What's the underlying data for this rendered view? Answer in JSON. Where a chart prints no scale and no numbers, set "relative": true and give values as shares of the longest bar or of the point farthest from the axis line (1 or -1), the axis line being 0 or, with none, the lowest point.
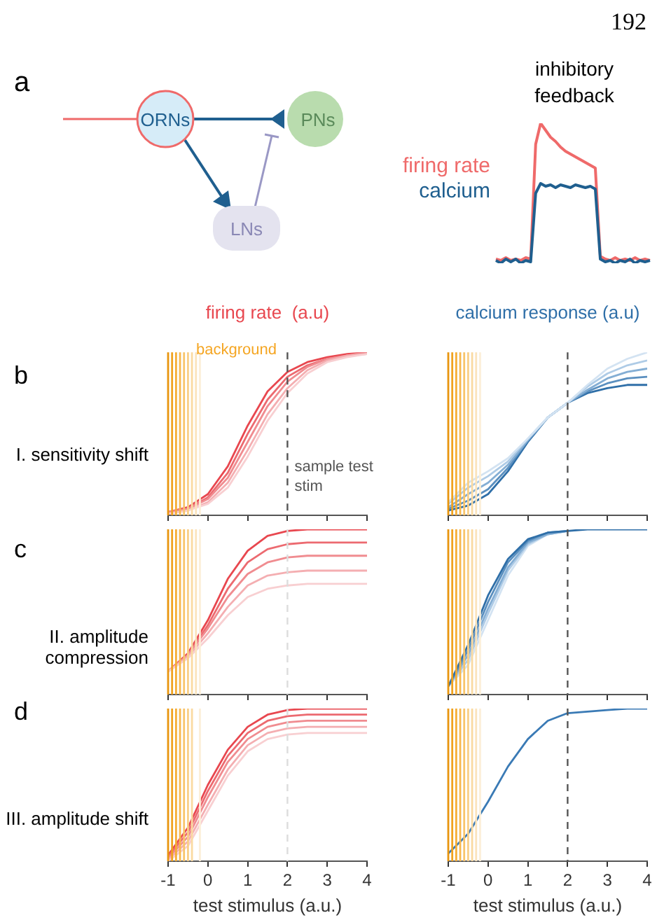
{
  "chart_data": [
    {
      "type": "other",
      "annotations": [
        "a",
        "ORNs",
        "PNs",
        "LNs",
        "192"
      ]
    },
    {
      "type": "line",
      "title": "inhibitory feedback",
      "relative": true,
      "tick_labels": false,
      "categories": [
        null,
        null,
        null,
        null,
        null,
        null,
        null,
        null,
        null,
        null,
        null,
        null,
        null,
        null,
        null,
        null,
        null,
        null,
        null,
        null,
        null,
        null,
        null,
        null,
        null,
        null,
        null,
        null,
        null,
        null,
        null,
        null
      ],
      "series": [
        {
          "name": "firing rate",
          "color": "#ef6a6a",
          "values": [
            0.03,
            0.02,
            0.04,
            0.02,
            0.03,
            0.02,
            0.04,
            0.03,
            0.85,
            1.0,
            0.95,
            0.9,
            0.87,
            0.83,
            0.8,
            0.78,
            0.76,
            0.74,
            0.72,
            0.7,
            0.68,
            0.05,
            0.03,
            0.02,
            0.04,
            0.02,
            0.03,
            0.02,
            0.04,
            0.02,
            0.03,
            0.02
          ]
        },
        {
          "name": "calcium",
          "color": "#1f5f8f",
          "values": [
            0.02,
            0.0,
            0.03,
            0.01,
            0.03,
            0.0,
            0.02,
            0.01,
            0.5,
            0.57,
            0.55,
            0.56,
            0.54,
            0.56,
            0.55,
            0.54,
            0.56,
            0.55,
            0.54,
            0.55,
            0.53,
            0.03,
            0.01,
            0.02,
            0.0,
            0.02,
            0.01,
            0.03,
            0.0,
            0.02,
            0.01,
            0.02
          ]
        }
      ]
    },
    {
      "type": "line",
      "title": "firing rate  (a.u)",
      "relative": true,
      "tick_labels": false,
      "xlim": [
        -1,
        4
      ],
      "xticks": [
        -1,
        0,
        1,
        2,
        3,
        4
      ],
      "x": [
        -1,
        -0.5,
        0,
        0.5,
        1,
        1.5,
        2,
        2.5,
        3,
        3.5,
        4
      ],
      "annotations": [
        "b",
        "I. sensitivity shift",
        "background"
      ],
      "ref_lines": [
        {
          "axis": "x",
          "value": -1,
          "color": "#e8950e"
        },
        {
          "axis": "x",
          "value": -0.9,
          "color": "#f0a21f"
        },
        {
          "axis": "x",
          "value": -0.8,
          "color": "#f5ad35"
        },
        {
          "axis": "x",
          "value": -0.7,
          "color": "#f7b84f"
        },
        {
          "axis": "x",
          "value": -0.6,
          "color": "#f8c46a"
        },
        {
          "axis": "x",
          "value": -0.5,
          "color": "#f9cf86"
        },
        {
          "axis": "x",
          "value": -0.4,
          "color": "#fadaa1"
        },
        {
          "axis": "x",
          "value": -0.3,
          "color": "#fbe4bc"
        },
        {
          "axis": "x",
          "value": -0.2,
          "color": "#fcefd8"
        },
        {
          "axis": "x",
          "value": 2,
          "label": "sample test stim",
          "color": "#555555",
          "line_style": "dashed"
        }
      ],
      "series": [
        {
          "color": "#e8474f",
          "values": [
            0.02,
            0.05,
            0.13,
            0.3,
            0.55,
            0.76,
            0.88,
            0.94,
            0.97,
            0.99,
            1.0
          ]
        },
        {
          "color": "#ec6a70",
          "values": [
            0.02,
            0.04,
            0.11,
            0.26,
            0.5,
            0.71,
            0.85,
            0.92,
            0.96,
            0.98,
            1.0
          ]
        },
        {
          "color": "#f08c90",
          "values": [
            0.02,
            0.04,
            0.1,
            0.23,
            0.45,
            0.67,
            0.82,
            0.91,
            0.96,
            0.98,
            1.0
          ]
        },
        {
          "color": "#f4aeb1",
          "values": [
            0.01,
            0.03,
            0.08,
            0.2,
            0.4,
            0.62,
            0.78,
            0.89,
            0.95,
            0.98,
            0.99
          ]
        },
        {
          "color": "#f8cfd1",
          "values": [
            0.01,
            0.03,
            0.07,
            0.17,
            0.36,
            0.58,
            0.75,
            0.87,
            0.94,
            0.97,
            0.99
          ]
        }
      ]
    },
    {
      "type": "line",
      "title": "calcium response (a.u)",
      "relative": true,
      "tick_labels": false,
      "xlim": [
        -1,
        4
      ],
      "xticks": [
        -1,
        0,
        1,
        2,
        3,
        4
      ],
      "x": [
        -1,
        -0.5,
        0,
        0.5,
        1,
        1.5,
        2,
        2.5,
        3,
        3.5,
        4
      ],
      "ref_lines": [
        {
          "axis": "x",
          "value": -1,
          "color": "#e8950e"
        },
        {
          "axis": "x",
          "value": -0.9,
          "color": "#f0a21f"
        },
        {
          "axis": "x",
          "value": -0.8,
          "color": "#f5ad35"
        },
        {
          "axis": "x",
          "value": -0.7,
          "color": "#f7b84f"
        },
        {
          "axis": "x",
          "value": -0.6,
          "color": "#f8c46a"
        },
        {
          "axis": "x",
          "value": -0.5,
          "color": "#f9cf86"
        },
        {
          "axis": "x",
          "value": -0.4,
          "color": "#fadaa1"
        },
        {
          "axis": "x",
          "value": -0.3,
          "color": "#fbe4bc"
        },
        {
          "axis": "x",
          "value": -0.2,
          "color": "#fcefd8"
        },
        {
          "axis": "x",
          "value": 2,
          "color": "#555555",
          "line_style": "dashed"
        }
      ],
      "series": [
        {
          "color": "#2f6fa8",
          "values": [
            0.03,
            0.06,
            0.13,
            0.27,
            0.45,
            0.6,
            0.69,
            0.75,
            0.78,
            0.8,
            0.8
          ]
        },
        {
          "color": "#5a8fbf",
          "values": [
            0.04,
            0.09,
            0.16,
            0.29,
            0.46,
            0.6,
            0.69,
            0.76,
            0.81,
            0.84,
            0.85
          ]
        },
        {
          "color": "#84aed4",
          "values": [
            0.05,
            0.13,
            0.2,
            0.31,
            0.46,
            0.6,
            0.69,
            0.77,
            0.84,
            0.88,
            0.9
          ]
        },
        {
          "color": "#aecbe6",
          "values": [
            0.07,
            0.17,
            0.24,
            0.33,
            0.47,
            0.6,
            0.69,
            0.79,
            0.87,
            0.92,
            0.95
          ]
        },
        {
          "color": "#d3e3f2",
          "values": [
            0.08,
            0.2,
            0.27,
            0.35,
            0.47,
            0.6,
            0.69,
            0.8,
            0.9,
            0.96,
            1.0
          ]
        }
      ]
    },
    {
      "type": "line",
      "relative": true,
      "tick_labels": false,
      "xlim": [
        -1,
        4
      ],
      "xticks": [
        -1,
        0,
        1,
        2,
        3,
        4
      ],
      "x": [
        -1,
        -0.5,
        0,
        0.5,
        1,
        1.5,
        2,
        2.5,
        3,
        3.5,
        4
      ],
      "annotations": [
        "c",
        "II. amplitude compression"
      ],
      "ref_lines": [
        {
          "axis": "x",
          "value": -1,
          "color": "#e8950e"
        },
        {
          "axis": "x",
          "value": -0.9,
          "color": "#f0a21f"
        },
        {
          "axis": "x",
          "value": -0.8,
          "color": "#f5ad35"
        },
        {
          "axis": "x",
          "value": -0.7,
          "color": "#f7b84f"
        },
        {
          "axis": "x",
          "value": -0.6,
          "color": "#f8c46a"
        },
        {
          "axis": "x",
          "value": -0.5,
          "color": "#f9cf86"
        },
        {
          "axis": "x",
          "value": -0.4,
          "color": "#fadaa1"
        },
        {
          "axis": "x",
          "value": -0.3,
          "color": "#fbe4bc"
        },
        {
          "axis": "x",
          "value": -0.2,
          "color": "#fcefd8"
        },
        {
          "axis": "x",
          "value": 2,
          "color": "#dddddd",
          "line_style": "dashed"
        }
      ],
      "series": [
        {
          "color": "#e8474f",
          "values": [
            0.14,
            0.25,
            0.45,
            0.7,
            0.87,
            0.96,
            0.99,
            1.0,
            1.0,
            1.0,
            1.0
          ]
        },
        {
          "color": "#ec6a70",
          "values": [
            0.14,
            0.24,
            0.42,
            0.64,
            0.8,
            0.88,
            0.91,
            0.92,
            0.92,
            0.92,
            0.92
          ]
        },
        {
          "color": "#f08c90",
          "values": [
            0.14,
            0.24,
            0.4,
            0.59,
            0.73,
            0.8,
            0.83,
            0.84,
            0.84,
            0.84,
            0.84
          ]
        },
        {
          "color": "#f4aeb1",
          "values": [
            0.14,
            0.23,
            0.37,
            0.53,
            0.66,
            0.72,
            0.74,
            0.75,
            0.75,
            0.75,
            0.75
          ]
        },
        {
          "color": "#f8cfd1",
          "values": [
            0.14,
            0.22,
            0.34,
            0.48,
            0.59,
            0.64,
            0.66,
            0.67,
            0.67,
            0.67,
            0.67
          ]
        }
      ]
    },
    {
      "type": "line",
      "relative": true,
      "tick_labels": false,
      "xlim": [
        -1,
        4
      ],
      "xticks": [
        -1,
        0,
        1,
        2,
        3,
        4
      ],
      "x": [
        -1,
        -0.5,
        0,
        0.5,
        1,
        1.5,
        2,
        2.5,
        3,
        3.5,
        4
      ],
      "ref_lines": [
        {
          "axis": "x",
          "value": -1,
          "color": "#e8950e"
        },
        {
          "axis": "x",
          "value": -0.9,
          "color": "#f0a21f"
        },
        {
          "axis": "x",
          "value": -0.8,
          "color": "#f5ad35"
        },
        {
          "axis": "x",
          "value": -0.7,
          "color": "#f7b84f"
        },
        {
          "axis": "x",
          "value": -0.6,
          "color": "#f8c46a"
        },
        {
          "axis": "x",
          "value": -0.5,
          "color": "#f9cf86"
        },
        {
          "axis": "x",
          "value": -0.4,
          "color": "#fadaa1"
        },
        {
          "axis": "x",
          "value": -0.3,
          "color": "#fbe4bc"
        },
        {
          "axis": "x",
          "value": -0.2,
          "color": "#fcefd8"
        },
        {
          "axis": "x",
          "value": 2,
          "color": "#555555",
          "line_style": "dashed"
        }
      ],
      "series": [
        {
          "color": "#d3e3f2",
          "values": [
            0.05,
            0.18,
            0.45,
            0.72,
            0.9,
            0.97,
            0.99,
            null,
            null,
            null,
            null
          ]
        },
        {
          "color": "#aecbe6",
          "values": [
            0.05,
            0.21,
            0.49,
            0.75,
            0.91,
            0.97,
            0.99,
            null,
            null,
            null,
            null
          ]
        },
        {
          "color": "#84aed4",
          "values": [
            0.05,
            0.24,
            0.52,
            0.77,
            0.92,
            0.97,
            0.99,
            null,
            null,
            null,
            null
          ]
        },
        {
          "color": "#5a8fbf",
          "values": [
            0.05,
            0.27,
            0.56,
            0.8,
            0.93,
            0.98,
            0.99,
            null,
            null,
            null,
            null
          ]
        },
        {
          "color": "#2f6fa8",
          "values": [
            0.05,
            0.3,
            0.6,
            0.82,
            0.94,
            0.98,
            0.99,
            1.0,
            1.0,
            1.0,
            1.0
          ]
        }
      ]
    },
    {
      "type": "line",
      "relative": true,
      "tick_labels": "x",
      "xlabel": "test stimulus (a.u.)",
      "xlim": [
        -1,
        4
      ],
      "xticks": [
        -1,
        0,
        1,
        2,
        3,
        4
      ],
      "x": [
        -1,
        -0.5,
        0,
        0.5,
        1,
        1.5,
        2,
        2.5,
        3,
        3.5,
        4
      ],
      "annotations": [
        "d",
        "III. amplitude shift"
      ],
      "ref_lines": [
        {
          "axis": "x",
          "value": -1,
          "color": "#e8950e"
        },
        {
          "axis": "x",
          "value": -0.9,
          "color": "#f0a21f"
        },
        {
          "axis": "x",
          "value": -0.8,
          "color": "#f5ad35"
        },
        {
          "axis": "x",
          "value": -0.7,
          "color": "#f7b84f"
        },
        {
          "axis": "x",
          "value": -0.6,
          "color": "#f8c46a"
        },
        {
          "axis": "x",
          "value": -0.5,
          "color": "#f9cf86"
        },
        {
          "axis": "x",
          "value": -0.4,
          "color": "#fadaa1"
        },
        {
          "axis": "x",
          "value": -0.2,
          "color": "#fcefd8"
        },
        {
          "axis": "x",
          "value": 2,
          "color": "#dddddd",
          "line_style": "dashed"
        }
      ],
      "series": [
        {
          "color": "#e8474f",
          "values": [
            0.04,
            0.22,
            0.5,
            0.73,
            0.88,
            0.96,
            0.99,
            1.0,
            1.0,
            1.0,
            1.0
          ]
        },
        {
          "color": "#ec6a70",
          "values": [
            0.03,
            0.19,
            0.46,
            0.69,
            0.84,
            0.92,
            0.95,
            0.96,
            0.96,
            0.96,
            0.96
          ]
        },
        {
          "color": "#f08c90",
          "values": [
            0.02,
            0.16,
            0.42,
            0.65,
            0.8,
            0.88,
            0.91,
            0.92,
            0.92,
            0.92,
            0.92
          ]
        },
        {
          "color": "#f4aeb1",
          "values": [
            0.01,
            0.13,
            0.37,
            0.6,
            0.76,
            0.84,
            0.87,
            0.88,
            0.88,
            0.88,
            0.88
          ]
        },
        {
          "color": "#f8cfd1",
          "values": [
            0.0,
            0.1,
            0.33,
            0.56,
            0.72,
            0.8,
            0.83,
            0.84,
            0.84,
            0.84,
            0.84
          ]
        }
      ]
    },
    {
      "type": "line",
      "relative": true,
      "tick_labels": "x",
      "xlabel": "test stimulus (a.u.)",
      "xlim": [
        -1,
        4
      ],
      "xticks": [
        -1,
        0,
        1,
        2,
        3,
        4
      ],
      "x": [
        -1,
        -0.5,
        0,
        0.5,
        1,
        1.5,
        2,
        2.5,
        3,
        3.5,
        4
      ],
      "ref_lines": [
        {
          "axis": "x",
          "value": -1,
          "color": "#e8950e"
        },
        {
          "axis": "x",
          "value": -0.9,
          "color": "#f0a21f"
        },
        {
          "axis": "x",
          "value": -0.8,
          "color": "#f5ad35"
        },
        {
          "axis": "x",
          "value": -0.7,
          "color": "#f7b84f"
        },
        {
          "axis": "x",
          "value": -0.6,
          "color": "#f8c46a"
        },
        {
          "axis": "x",
          "value": -0.5,
          "color": "#f9cf86"
        },
        {
          "axis": "x",
          "value": -0.4,
          "color": "#fadaa1"
        },
        {
          "axis": "x",
          "value": -0.3,
          "color": "#fbe4bc"
        },
        {
          "axis": "x",
          "value": -0.2,
          "color": "#fcefd8"
        },
        {
          "axis": "x",
          "value": 2,
          "color": "#555555",
          "line_style": "dashed"
        }
      ],
      "series": [
        {
          "color": "#3a7ab5",
          "values": [
            0.05,
            0.18,
            0.39,
            0.62,
            0.8,
            0.92,
            0.97,
            0.98,
            0.99,
            1.0,
            1.0
          ]
        }
      ]
    }
  ]
}
